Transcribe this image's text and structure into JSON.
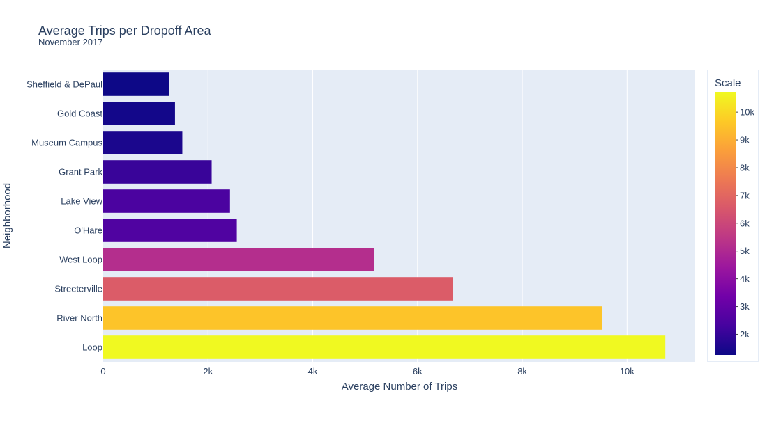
{
  "chart_data": {
    "type": "bar",
    "orientation": "horizontal",
    "title": "Average Trips per Dropoff Area",
    "subtitle": "November 2017",
    "xlabel": "Average Number of Trips",
    "ylabel": "Neighborhood",
    "categories": [
      "Sheffield & DePaul",
      "Gold Coast",
      "Museum Campus",
      "Grant Park",
      "Lake View",
      "O'Hare",
      "West Loop",
      "Streeterville",
      "River North",
      "Loop"
    ],
    "values": [
      1260,
      1370,
      1510,
      2070,
      2420,
      2550,
      5170,
      6670,
      9520,
      10730
    ],
    "xlim": [
      0,
      11300
    ],
    "x_ticks": [
      0,
      2000,
      4000,
      6000,
      8000,
      10000
    ],
    "x_tick_labels": [
      "0",
      "2k",
      "4k",
      "6k",
      "8k",
      "10k"
    ],
    "grid": true,
    "plot_bg": "#e5ecf6",
    "colorscale_name": "Plasma",
    "colorbar": {
      "title": "Scale",
      "range": [
        1260,
        10730
      ],
      "ticks": [
        2000,
        3000,
        4000,
        5000,
        6000,
        7000,
        8000,
        9000,
        10000
      ],
      "tick_labels": [
        "2k",
        "3k",
        "4k",
        "5k",
        "6k",
        "7k",
        "8k",
        "9k",
        "10k"
      ],
      "placement": "right"
    }
  }
}
